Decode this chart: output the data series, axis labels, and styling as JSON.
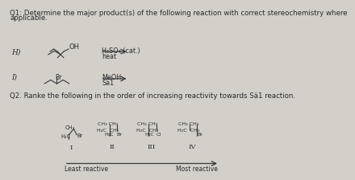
{
  "bg_color": "#d4cfc9",
  "title_q1_line1": "Q1: Determine the major product(s) of the following reaction with correct stereochemistry where",
  "title_q1_line2": "applicable.",
  "title_q2": "Q2. Ranke the following in the order of increasing reactivity towards Sä1 reaction.",
  "reaction_H_label": "H)",
  "reaction_H_reagent_line1": "H₂SO₄ (cat.)",
  "reaction_H_reagent_line2": "heat",
  "reaction_I_label": "I)",
  "reaction_I_reagent_line1": "MeOH",
  "reaction_I_reagent_line2": "Sä1",
  "compound_labels": [
    "I",
    "II",
    "III",
    "IV"
  ],
  "least_reactive": "Least reactive",
  "most_reactive": "Most reactive",
  "text_color": "#2a2a2a",
  "line_color": "#3a3a3a"
}
